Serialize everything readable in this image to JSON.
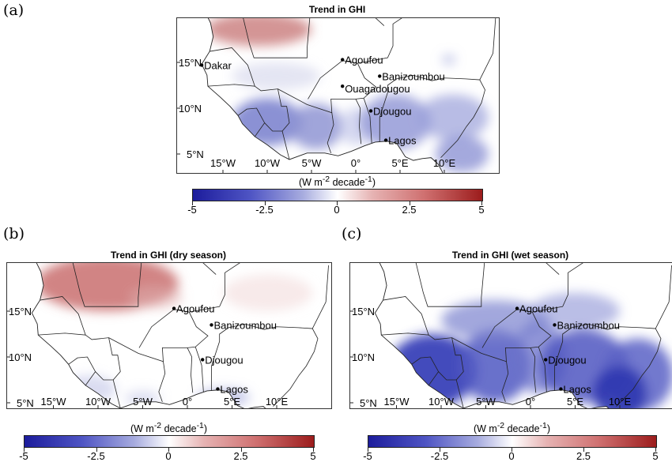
{
  "panels": [
    {
      "label": "(a)",
      "title": "Trend in GHI",
      "show_dakar": true
    },
    {
      "label": "(b)",
      "title": "Trend in GHI (dry season)",
      "show_dakar": false
    },
    {
      "label": "(c)",
      "title": "Trend in GHI (wet season)",
      "show_dakar": false
    }
  ],
  "units": {
    "main": "(W m",
    "exp1": "-2",
    "mid": " decade",
    "exp2": "-1",
    "end": ")"
  },
  "colorbar": {
    "ticks": [
      "-5",
      "-2.5",
      "0",
      "2.5",
      "5"
    ],
    "range": [
      -5,
      5
    ],
    "low_color": "#1c1c9c",
    "mid_color": "#ffffff",
    "high_color": "#9c1c1c"
  },
  "lat_labels": [
    "15°N",
    "10°N",
    "5°N"
  ],
  "lon_labels": [
    "15°W",
    "10°W",
    "5°W",
    "0°",
    "5°E",
    "10°E"
  ],
  "cities": [
    {
      "name": "Dakar",
      "lon": -17.4,
      "lat": 14.7
    },
    {
      "name": "Agoufou",
      "lon": -1.5,
      "lat": 15.3
    },
    {
      "name": "Banizoumbou",
      "lon": 2.7,
      "lat": 13.5
    },
    {
      "name": "Ouagadougou",
      "lon": -1.5,
      "lat": 12.4
    },
    {
      "name": "Djougou",
      "lon": 1.7,
      "lat": 9.7
    },
    {
      "name": "Lagos",
      "lon": 3.4,
      "lat": 6.5
    }
  ]
}
